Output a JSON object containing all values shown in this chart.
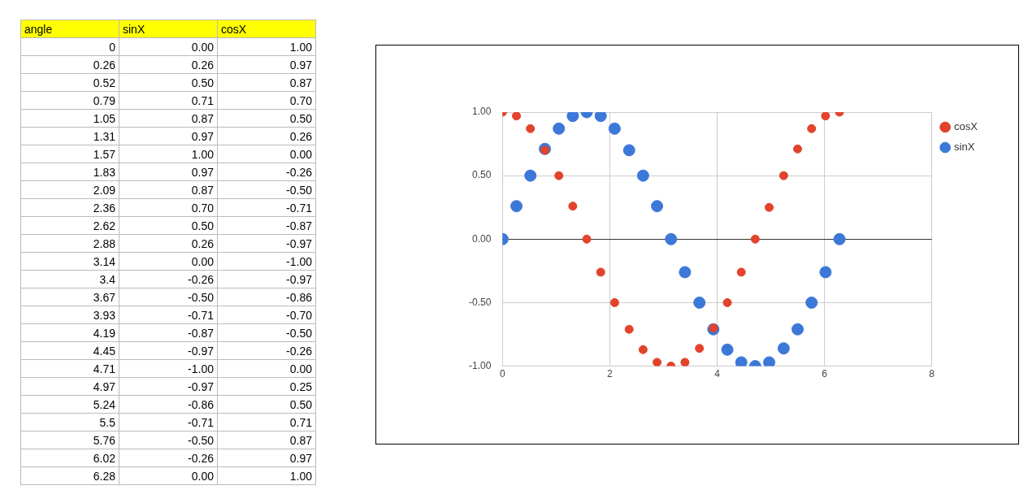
{
  "chart_data": [
    {
      "type": "other",
      "annotations": [
        "angle",
        "sinX",
        "cosX",
        "0",
        "0.00",
        "1.00",
        "0.26",
        "0.26",
        "0.97",
        "0.52",
        "0.50",
        "0.87",
        "0.79",
        "0.71",
        "0.70",
        "1.05",
        "0.87",
        "0.50",
        "1.31",
        "0.97",
        "0.26",
        "1.57",
        "1.00",
        "0.00",
        "1.83",
        "0.97",
        "-0.26",
        "2.09",
        "0.87",
        "-0.50",
        "2.36",
        "0.70",
        "-0.71",
        "2.62",
        "0.50",
        "-0.87",
        "2.88",
        "0.26",
        "-0.97",
        "3.14",
        "0.00",
        "-1.00",
        "3.4",
        "-0.26",
        "-0.97",
        "3.67",
        "-0.50",
        "-0.86",
        "3.93",
        "-0.71",
        "-0.70",
        "4.19",
        "-0.87",
        "-0.50",
        "4.45",
        "-0.97",
        "-0.26",
        "4.71",
        "-1.00",
        "0.00",
        "4.97",
        "-0.97",
        "0.25",
        "5.24",
        "-0.86",
        "0.50",
        "5.5",
        "-0.71",
        "0.71",
        "5.76",
        "-0.50",
        "0.87",
        "6.02",
        "-0.26",
        "0.97",
        "6.28",
        "0.00",
        "1.00"
      ]
    },
    {
      "type": "scatter",
      "x": [
        0,
        0.26,
        0.52,
        0.79,
        1.05,
        1.31,
        1.57,
        1.83,
        2.09,
        2.36,
        2.62,
        2.88,
        3.14,
        3.4,
        3.67,
        3.93,
        4.19,
        4.45,
        4.71,
        4.97,
        5.24,
        5.5,
        5.76,
        6.02,
        6.28
      ],
      "series": [
        {
          "name": "sinX",
          "color": "#3c78d8",
          "values": [
            0,
            0.26,
            0.5,
            0.71,
            0.87,
            0.97,
            1,
            0.97,
            0.87,
            0.7,
            0.5,
            0.26,
            0,
            -0.26,
            -0.5,
            -0.71,
            -0.87,
            -0.97,
            -1,
            -0.97,
            -0.86,
            -0.71,
            -0.5,
            -0.26,
            0
          ]
        },
        {
          "name": "cosX",
          "color": "#e2432a",
          "values": [
            1,
            0.97,
            0.87,
            0.7,
            0.5,
            0.26,
            0,
            -0.26,
            -0.5,
            -0.71,
            -0.87,
            -0.97,
            -1,
            -0.97,
            -0.86,
            -0.7,
            -0.5,
            -0.26,
            0,
            0.25,
            0.5,
            0.71,
            0.87,
            0.97,
            1
          ]
        }
      ],
      "xlim": [
        0,
        8
      ],
      "xticks": [
        0,
        2,
        4,
        6,
        8
      ],
      "ylim": [
        -1,
        1
      ],
      "yticks": [
        {
          "value": -1,
          "label": "-1.00"
        },
        {
          "value": -0.5,
          "label": "-0.50"
        },
        {
          "value": 0,
          "label": "0.00"
        },
        {
          "value": 0.5,
          "label": "0.50"
        },
        {
          "value": 1,
          "label": "1.00"
        }
      ],
      "grid": true,
      "legend": "right",
      "marker": "circle"
    }
  ]
}
